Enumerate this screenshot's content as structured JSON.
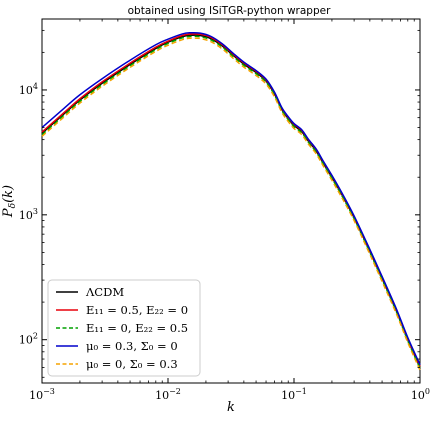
{
  "chart_data": {
    "type": "line",
    "title": "obtained using ISiTGR-python wrapper",
    "xlabel": "k",
    "ylabel": "P_δ(k)",
    "xscale": "log",
    "yscale": "log",
    "xlim": [
      0.001,
      1
    ],
    "ylim": [
      45,
      37000
    ],
    "x_ticks": [
      {
        "value": 0.001,
        "base": "10",
        "exp": "−3"
      },
      {
        "value": 0.01,
        "base": "10",
        "exp": "−2"
      },
      {
        "value": 0.1,
        "base": "10",
        "exp": "−1"
      },
      {
        "value": 1,
        "base": "10",
        "exp": "0"
      }
    ],
    "y_ticks": [
      {
        "value": 100,
        "base": "10",
        "exp": "2"
      },
      {
        "value": 1000,
        "base": "10",
        "exp": "3"
      },
      {
        "value": 10000,
        "base": "10",
        "exp": "4"
      }
    ],
    "grid": false,
    "legend_position": "bottom-left",
    "x": [
      0.001,
      0.0015,
      0.002,
      0.003,
      0.005,
      0.008,
      0.01,
      0.013,
      0.015,
      0.018,
      0.022,
      0.027,
      0.033,
      0.04,
      0.05,
      0.06,
      0.07,
      0.08,
      0.09,
      0.1,
      0.115,
      0.13,
      0.15,
      0.17,
      0.2,
      0.24,
      0.3,
      0.4,
      0.5,
      0.65,
      0.8,
      1.0
    ],
    "series": [
      {
        "name": "ΛCDM",
        "color": "#000000",
        "dash": "solid",
        "values": [
          4500,
          6450,
          8300,
          11300,
          16000,
          21500,
          24100,
          26700,
          27400,
          27300,
          25700,
          22500,
          18900,
          16100,
          13800,
          11800,
          9300,
          7000,
          5900,
          5200,
          4650,
          3900,
          3250,
          2620,
          2000,
          1450,
          950,
          510,
          310,
          170,
          100,
          60
        ]
      },
      {
        "name": "E_11 = 0.5, E_22 = 0",
        "color": "#e8000b",
        "dash": "solid",
        "values": [
          4600,
          6600,
          8500,
          11600,
          16400,
          22000,
          24600,
          27300,
          28000,
          27900,
          26300,
          23000,
          19300,
          16450,
          14100,
          12050,
          9500,
          7150,
          6030,
          5320,
          4760,
          3990,
          3330,
          2680,
          2050,
          1480,
          970,
          520,
          316,
          174,
          102,
          61
        ]
      },
      {
        "name": "E_11 = 0, E_22 = 0.5",
        "color": "#00a000",
        "dash": "dashed",
        "values": [
          4380,
          6300,
          8120,
          11050,
          15650,
          21050,
          23600,
          26150,
          26830,
          26740,
          25170,
          22030,
          18510,
          15770,
          13520,
          11560,
          9110,
          6860,
          5780,
          5090,
          4550,
          3820,
          3180,
          2570,
          1960,
          1420,
          930,
          500,
          304,
          167,
          98,
          59
        ]
      },
      {
        "name": "μ_0 = 0.3, Σ_0 = 0",
        "color": "#0000cc",
        "dash": "solid",
        "values": [
          5000,
          7150,
          9150,
          12300,
          17300,
          23000,
          25500,
          28100,
          28700,
          28500,
          26800,
          23400,
          19600,
          16700,
          14300,
          12200,
          9600,
          7230,
          6100,
          5380,
          4810,
          4030,
          3360,
          2710,
          2070,
          1500,
          980,
          528,
          321,
          176,
          104,
          63
        ]
      },
      {
        "name": "μ_0 = 0, Σ_0 = 0.3",
        "color": "#f5a300",
        "dash": "dashed",
        "values": [
          4250,
          6100,
          7850,
          10700,
          15150,
          20350,
          22800,
          25270,
          25930,
          25830,
          24320,
          21290,
          17880,
          15240,
          13060,
          11170,
          8800,
          6630,
          5590,
          4920,
          4400,
          3690,
          3080,
          2480,
          1890,
          1370,
          900,
          483,
          293,
          161,
          95,
          57
        ]
      }
    ]
  },
  "legend": {
    "entries": [
      "ΛCDM",
      "E₁₁ = 0.5, E₂₂ = 0",
      "E₁₁ = 0, E₂₂ = 0.5",
      "μ₀ = 0.3, Σ₀ = 0",
      "μ₀ = 0, Σ₀ = 0.3"
    ]
  },
  "axis_text": {
    "ylabel_main": "P",
    "ylabel_sub": "δ",
    "ylabel_arg": "(k)"
  }
}
